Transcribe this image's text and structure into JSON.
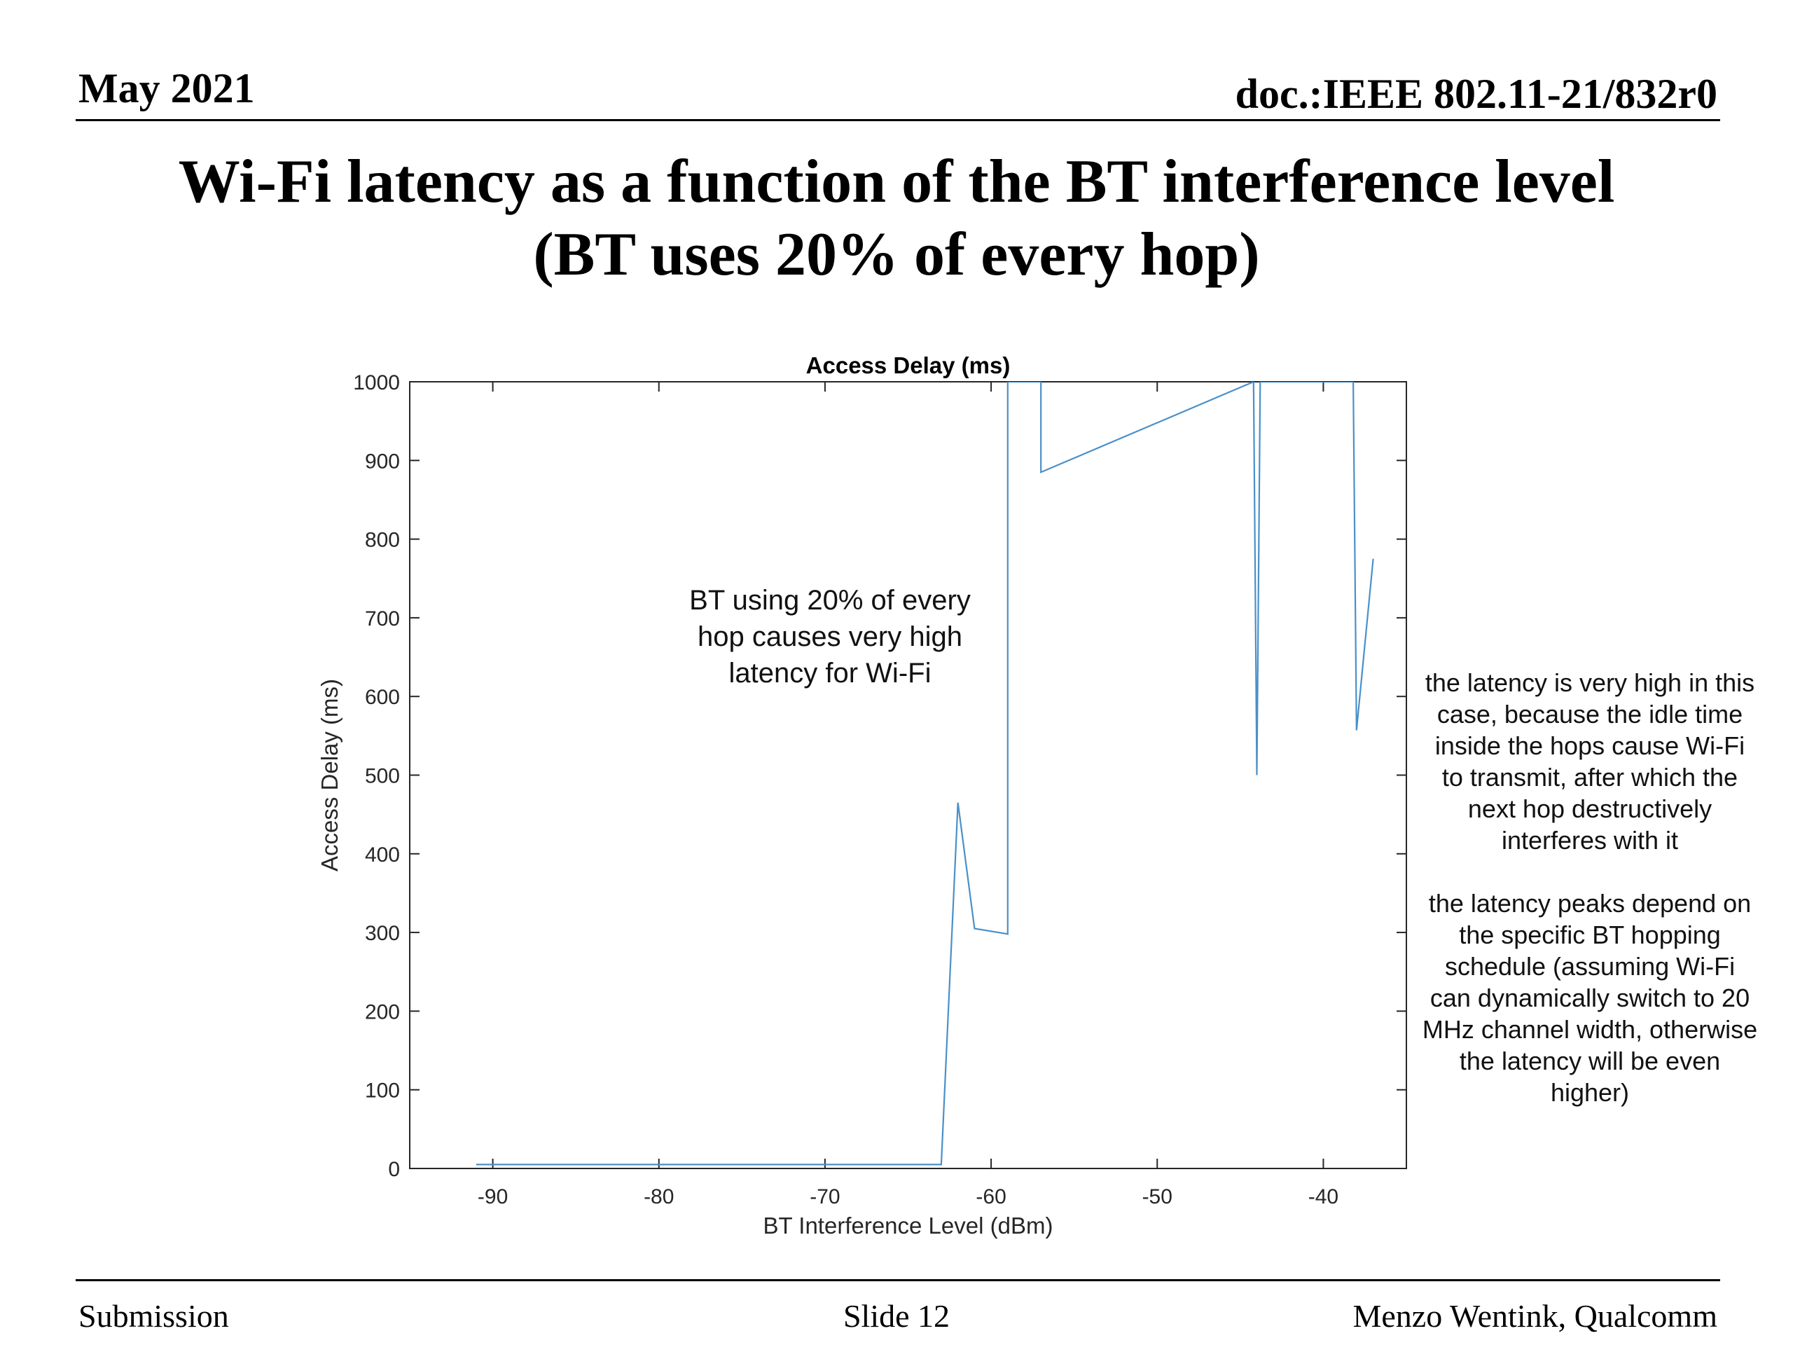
{
  "header": {
    "date": "May 2021",
    "doc_id": "doc.:IEEE 802.11-21/832r0"
  },
  "slide": {
    "title_line1": "Wi-Fi latency as a function of the BT interference level",
    "title_line2": "(BT uses 20% of every hop)"
  },
  "side_notes": {
    "note1": "the latency is very high in this case, because the idle time inside the hops cause Wi-Fi to transmit, after which the next hop destructively interferes with it",
    "note2": "the latency peaks depend on the specific BT hopping schedule (assuming Wi-Fi can dynamically switch to 20 MHz channel width, otherwise the latency will be even higher)"
  },
  "footer": {
    "left": "Submission",
    "center": "Slide 12",
    "right": "Menzo Wentink, Qualcomm"
  },
  "chart_data": {
    "type": "line",
    "title": "Access Delay (ms)",
    "xlabel": "BT Interference Level (dBm)",
    "ylabel": "Access Delay (ms)",
    "xlim": [
      -95,
      -35
    ],
    "ylim": [
      0,
      1000
    ],
    "xticks": [
      -90,
      -80,
      -70,
      -60,
      -50,
      -40
    ],
    "yticks": [
      0,
      100,
      200,
      300,
      400,
      500,
      600,
      700,
      800,
      900,
      1000
    ],
    "grid": false,
    "line_color": "#4a90c8",
    "annotation": "BT using 20% of every hop causes very high latency for Wi-Fi",
    "series": [
      {
        "x": [
          -91,
          -63,
          -62,
          -61,
          -59,
          -59,
          -57,
          -57,
          -44.2,
          -44,
          -43.8,
          -38.2,
          -38,
          -37
        ],
        "y": [
          5,
          5,
          465,
          305,
          298,
          1000,
          1000,
          885,
          1000,
          500,
          1000,
          1000,
          557,
          775
        ]
      }
    ]
  }
}
